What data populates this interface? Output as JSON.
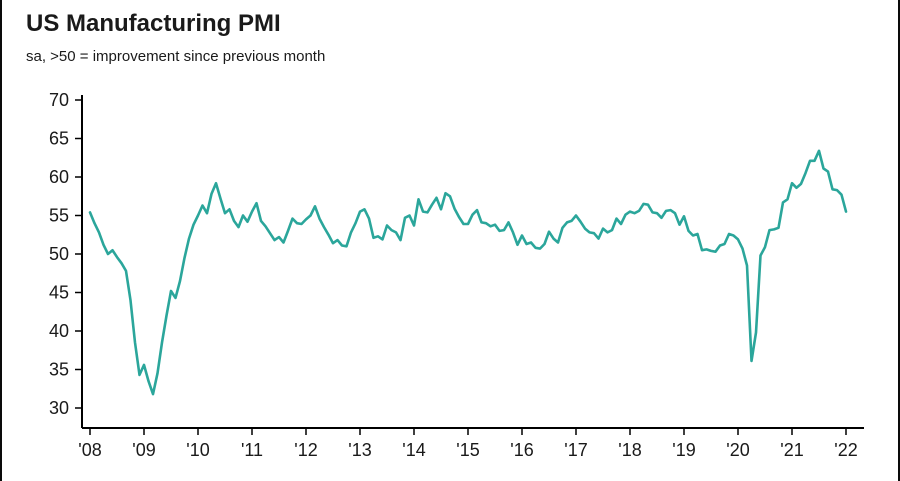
{
  "header": {
    "title": "US Manufacturing PMI",
    "subtitle": "sa, >50 = improvement since previous month"
  },
  "colors": {
    "line": "#2BA69B",
    "axis": "#000000",
    "text": "#1a1a1a",
    "background": "#ffffff"
  },
  "chart_data": {
    "type": "line",
    "title": "US Manufacturing PMI",
    "subtitle": "sa, >50 = improvement since previous month",
    "xlabel": "",
    "ylabel": "",
    "ylim": [
      30,
      70
    ],
    "grid": false,
    "legend": "none",
    "frequency": "monthly",
    "x_start": "2008-01",
    "x_end": "2022-01",
    "x_tick_labels": [
      "'08",
      "'09",
      "'10",
      "'11",
      "'12",
      "'13",
      "'14",
      "'15",
      "'16",
      "'17",
      "'18",
      "'19",
      "'20",
      "'21",
      "'22"
    ],
    "y_ticks": [
      30,
      35,
      40,
      45,
      50,
      55,
      60,
      65,
      70
    ],
    "series": [
      {
        "name": "US Manufacturing PMI (sa)",
        "color": "#2BA69B",
        "values": [
          55.4,
          54.0,
          52.8,
          51.2,
          50.0,
          50.5,
          49.6,
          48.8,
          47.8,
          44.0,
          38.5,
          34.3,
          35.6,
          33.5,
          31.8,
          34.5,
          38.5,
          42.0,
          45.2,
          44.3,
          46.5,
          49.5,
          52.0,
          53.8,
          55.0,
          56.3,
          55.3,
          57.8,
          59.2,
          57.2,
          55.3,
          55.8,
          54.3,
          53.5,
          55.0,
          54.2,
          55.5,
          56.6,
          54.3,
          53.6,
          52.7,
          51.8,
          52.2,
          51.5,
          53.0,
          54.6,
          54.0,
          53.9,
          54.5,
          55.0,
          56.2,
          54.6,
          53.5,
          52.5,
          51.4,
          51.8,
          51.1,
          51.0,
          52.8,
          54.0,
          55.5,
          55.8,
          54.6,
          52.1,
          52.3,
          51.9,
          53.7,
          53.1,
          52.8,
          51.8,
          54.7,
          55.0,
          53.7,
          57.1,
          55.5,
          55.4,
          56.4,
          57.3,
          55.8,
          57.9,
          57.5,
          55.9,
          54.8,
          53.9,
          53.9,
          55.1,
          55.7,
          54.1,
          54.0,
          53.6,
          53.8,
          53.0,
          53.1,
          54.1,
          52.8,
          51.2,
          52.4,
          51.3,
          51.5,
          50.8,
          50.7,
          51.3,
          52.9,
          52.0,
          51.5,
          53.4,
          54.1,
          54.3,
          55.0,
          54.2,
          53.3,
          52.8,
          52.7,
          52.0,
          53.3,
          52.8,
          53.1,
          54.6,
          53.9,
          55.1,
          55.5,
          55.3,
          55.6,
          56.5,
          56.4,
          55.4,
          55.3,
          54.7,
          55.6,
          55.7,
          55.3,
          53.8,
          54.9,
          53.0,
          52.4,
          52.6,
          50.5,
          50.6,
          50.4,
          50.3,
          51.1,
          51.3,
          52.6,
          52.4,
          51.9,
          50.7,
          48.5,
          36.1,
          39.8,
          49.8,
          50.9,
          53.1,
          53.2,
          53.4,
          56.7,
          57.1,
          59.2,
          58.6,
          59.1,
          60.5,
          62.1,
          62.1,
          63.4,
          61.1,
          60.7,
          58.4,
          58.3,
          57.7,
          55.5
        ]
      }
    ]
  }
}
